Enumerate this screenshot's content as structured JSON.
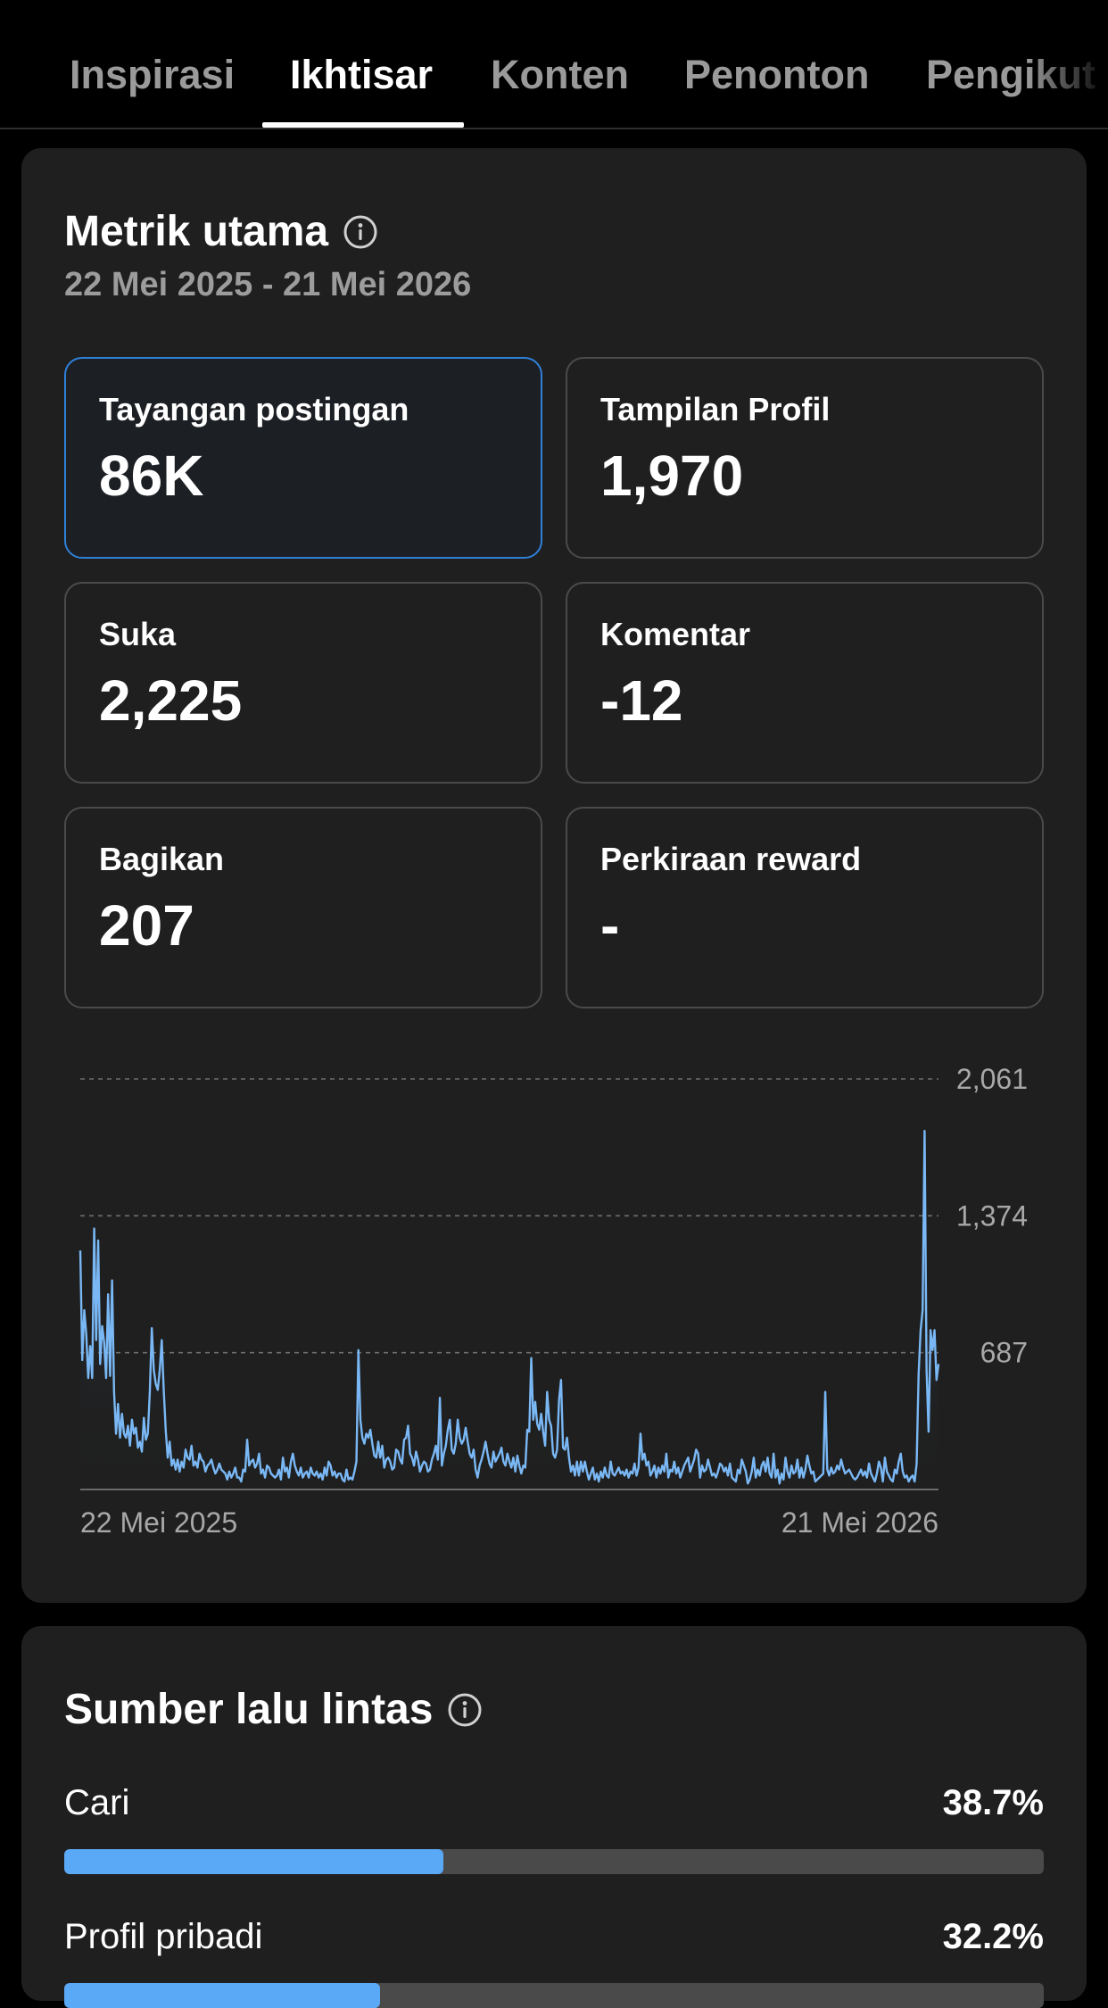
{
  "tabs": [
    {
      "label": "Inspirasi",
      "active": false
    },
    {
      "label": "Ikhtisar",
      "active": true
    },
    {
      "label": "Konten",
      "active": false
    },
    {
      "label": "Penonton",
      "active": false
    },
    {
      "label": "Pengikut",
      "active": false
    }
  ],
  "key_metrics": {
    "title": "Metrik utama",
    "date_range": "22 Mei 2025 - 21 Mei 2026",
    "items": [
      {
        "label": "Tayangan postingan",
        "value": "86K",
        "selected": true
      },
      {
        "label": "Tampilan Profil",
        "value": "1,970",
        "selected": false
      },
      {
        "label": "Suka",
        "value": "2,225",
        "selected": false
      },
      {
        "label": "Komentar",
        "value": "-12",
        "selected": false
      },
      {
        "label": "Bagikan",
        "value": "207",
        "selected": false
      },
      {
        "label": "Perkiraan reward",
        "value": "-",
        "selected": false
      }
    ]
  },
  "chart_data": {
    "type": "area",
    "title": "",
    "xlabel": "",
    "ylabel": "",
    "x_start": "22 Mei 2025",
    "x_end": "21 Mei 2026",
    "yticks": [
      "2,061",
      "1,374",
      "687"
    ],
    "ylim": [
      0,
      2061
    ],
    "grid": true,
    "color": "#7ab8f5",
    "values": [
      1200,
      650,
      900,
      780,
      560,
      720,
      560,
      1310,
      750,
      1250,
      630,
      820,
      740,
      560,
      980,
      570,
      1050,
      490,
      280,
      430,
      260,
      380,
      280,
      260,
      320,
      220,
      350,
      280,
      310,
      210,
      240,
      190,
      360,
      250,
      280,
      490,
      810,
      600,
      530,
      500,
      600,
      750,
      500,
      300,
      160,
      240,
      120,
      150,
      100,
      150,
      90,
      140,
      110,
      200,
      160,
      150,
      220,
      120,
      140,
      110,
      180,
      150,
      140,
      90,
      120,
      130,
      150,
      110,
      80,
      100,
      130,
      100,
      90,
      80,
      50,
      90,
      60,
      80,
      110,
      60,
      60,
      40,
      100,
      90,
      250,
      120,
      140,
      150,
      110,
      130,
      180,
      80,
      100,
      60,
      120,
      110,
      80,
      70,
      60,
      70,
      100,
      50,
      160,
      90,
      110,
      60,
      140,
      180,
      120,
      90,
      70,
      110,
      60,
      80,
      90,
      60,
      110,
      80,
      70,
      90,
      60,
      80,
      50,
      110,
      70,
      140,
      120,
      70,
      90,
      60,
      80,
      80,
      50,
      40,
      100,
      50,
      60,
      50,
      90,
      140,
      700,
      350,
      260,
      230,
      280,
      260,
      300,
      230,
      170,
      160,
      240,
      160,
      220,
      110,
      150,
      160,
      140,
      100,
      110,
      200,
      190,
      150,
      130,
      250,
      260,
      320,
      180,
      160,
      120,
      190,
      150,
      90,
      120,
      140,
      130,
      90,
      100,
      150,
      180,
      220,
      150,
      460,
      120,
      180,
      220,
      300,
      350,
      200,
      180,
      230,
      350,
      260,
      230,
      250,
      310,
      240,
      180,
      160,
      200,
      100,
      60,
      120,
      150,
      190,
      240,
      180,
      130,
      110,
      190,
      140,
      160,
      180,
      210,
      140,
      120,
      180,
      140,
      110,
      160,
      90,
      170,
      120,
      80,
      120,
      110,
      300,
      290,
      660,
      350,
      440,
      330,
      300,
      380,
      290,
      220,
      490,
      350,
      320,
      180,
      160,
      200,
      450,
      550,
      210,
      200,
      260,
      160,
      90,
      120,
      70,
      140,
      70,
      140,
      90,
      140,
      90,
      50,
      80,
      110,
      50,
      80,
      40,
      90,
      60,
      110,
      70,
      60,
      140,
      80,
      70,
      90,
      110,
      80,
      90,
      70,
      100,
      60,
      90,
      80,
      130,
      70,
      110,
      280,
      150,
      180,
      120,
      140,
      70,
      90,
      120,
      60,
      110,
      80,
      120,
      90,
      180,
      60,
      100,
      90,
      140,
      80,
      110,
      60,
      90,
      120,
      140,
      160,
      90,
      120,
      150,
      200,
      180,
      60,
      120,
      90,
      100,
      150,
      110,
      70,
      80,
      60,
      90,
      130,
      120,
      90,
      110,
      70,
      130,
      60,
      50,
      40,
      100,
      80,
      150,
      120,
      90,
      30,
      50,
      90,
      160,
      60,
      100,
      70,
      120,
      140,
      90,
      160,
      80,
      60,
      180,
      60,
      100,
      30,
      80,
      50,
      160,
      90,
      60,
      120,
      80,
      90,
      150,
      60,
      110,
      60,
      100,
      170,
      120,
      80,
      90,
      40,
      50,
      60,
      70,
      80,
      490,
      100,
      70,
      110,
      80,
      90,
      120,
      100,
      150,
      110,
      80,
      90,
      100,
      80,
      60,
      50,
      60,
      80,
      100,
      70,
      90,
      60,
      130,
      80,
      60,
      40,
      80,
      140,
      110,
      40,
      160,
      90,
      70,
      50,
      40,
      100,
      80,
      140,
      180,
      90,
      60,
      70,
      40,
      60,
      70,
      40,
      130,
      580,
      800,
      900,
      1800,
      600,
      290,
      800,
      700,
      800,
      550,
      630
    ]
  },
  "traffic_sources": {
    "title": "Sumber lalu lintas",
    "accent": "#5aa9f7",
    "items": [
      {
        "label": "Cari",
        "percent": "38.7%",
        "fraction": 0.387
      },
      {
        "label": "Profil pribadi",
        "percent": "32.2%",
        "fraction": 0.322
      }
    ]
  }
}
